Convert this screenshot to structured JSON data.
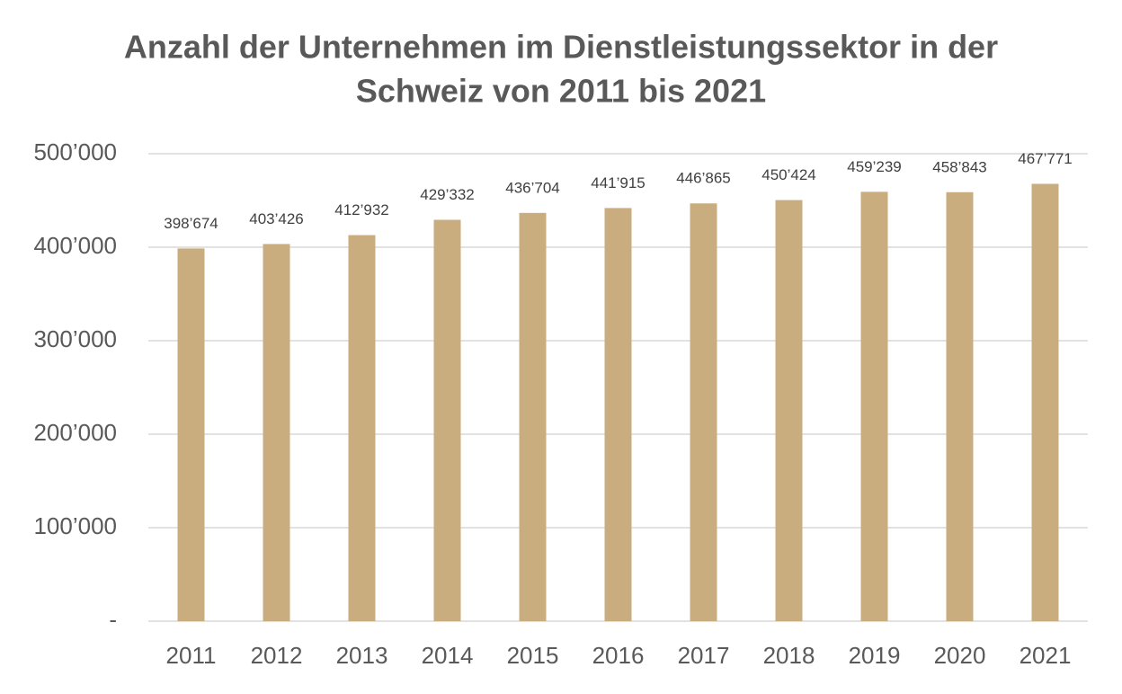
{
  "chart_data": {
    "type": "bar",
    "title": [
      "Anzahl der Unternehmen im Dienstleistungssektor in der",
      "Schweiz von 2011 bis 2021"
    ],
    "categories": [
      "2011",
      "2012",
      "2013",
      "2014",
      "2015",
      "2016",
      "2017",
      "2018",
      "2019",
      "2020",
      "2021"
    ],
    "values": [
      398674,
      403426,
      412932,
      429332,
      436704,
      441915,
      446865,
      450424,
      459239,
      458843,
      467771
    ],
    "value_labels": [
      "398’674",
      "403’426",
      "412’932",
      "429’332",
      "436’704",
      "441’915",
      "446’865",
      "450’424",
      "459’239",
      "458’843",
      "467’771"
    ],
    "color": "#c9ad7f",
    "ylim": [
      0,
      500000
    ],
    "yticks": [
      {
        "value": 0,
        "label": "-"
      },
      {
        "value": 100000,
        "label": "100’000"
      },
      {
        "value": 200000,
        "label": "200’000"
      },
      {
        "value": 300000,
        "label": "300’000"
      },
      {
        "value": 400000,
        "label": "400’000"
      },
      {
        "value": 500000,
        "label": "500’000"
      }
    ],
    "grid": true
  }
}
